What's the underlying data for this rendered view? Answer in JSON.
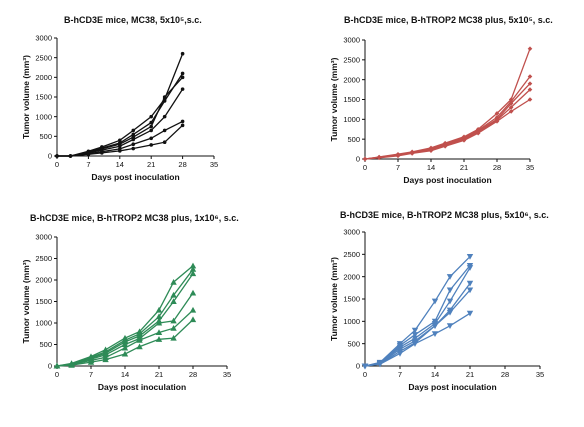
{
  "chart_data": [
    {
      "type": "line",
      "title": "B-hCD3E mice, MC38, 5x10⁵,s.c.",
      "xlabel": "Days post inoculation",
      "ylabel": "Tumor volume (mm³)",
      "xlim": [
        0,
        35
      ],
      "ylim": [
        0,
        3000
      ],
      "xticks": [
        0,
        7,
        14,
        21,
        28,
        35
      ],
      "yticks": [
        0,
        500,
        1000,
        1500,
        2000,
        2500,
        3000
      ],
      "marker": "circle",
      "color": "#111111",
      "series": [
        {
          "x": [
            0,
            3,
            7,
            10,
            14,
            17,
            21,
            24,
            28
          ],
          "y": [
            0,
            0,
            120,
            230,
            400,
            650,
            1000,
            1450,
            2600
          ]
        },
        {
          "x": [
            0,
            3,
            7,
            10,
            14,
            17,
            21,
            24,
            28
          ],
          "y": [
            0,
            0,
            100,
            200,
            330,
            550,
            850,
            1400,
            2100
          ]
        },
        {
          "x": [
            0,
            3,
            7,
            10,
            14,
            17,
            21,
            24,
            28
          ],
          "y": [
            0,
            0,
            90,
            180,
            300,
            480,
            750,
            1500,
            2000
          ]
        },
        {
          "x": [
            0,
            3,
            7,
            10,
            14,
            17,
            21,
            24,
            28
          ],
          "y": [
            0,
            0,
            80,
            150,
            250,
            420,
            650,
            1000,
            1700
          ]
        },
        {
          "x": [
            0,
            3,
            7,
            10,
            14,
            17,
            21,
            24,
            28
          ],
          "y": [
            0,
            0,
            60,
            110,
            180,
            300,
            450,
            650,
            880
          ]
        },
        {
          "x": [
            0,
            3,
            7,
            10,
            14,
            17,
            21,
            24,
            28
          ],
          "y": [
            0,
            0,
            40,
            80,
            130,
            190,
            280,
            350,
            780
          ]
        }
      ]
    },
    {
      "type": "line",
      "title": "B-hCD3E mice, B-hTROP2 MC38 plus, 5x10⁵, s.c.",
      "xlabel": "Days post inoculation",
      "ylabel": "Tumor volume (mm³)",
      "xlim": [
        0,
        35
      ],
      "ylim": [
        0,
        3000
      ],
      "xticks": [
        0,
        7,
        14,
        21,
        28,
        35
      ],
      "yticks": [
        0,
        500,
        1000,
        1500,
        2000,
        2500,
        3000
      ],
      "marker": "diamond",
      "color": "#c0504d",
      "series": [
        {
          "x": [
            0,
            3,
            7,
            10,
            14,
            17,
            21,
            24,
            28,
            31,
            35
          ],
          "y": [
            0,
            50,
            120,
            180,
            280,
            400,
            560,
            750,
            1150,
            1500,
            2780
          ]
        },
        {
          "x": [
            0,
            3,
            7,
            10,
            14,
            17,
            21,
            24,
            28,
            31,
            35
          ],
          "y": [
            0,
            45,
            110,
            170,
            260,
            380,
            540,
            720,
            1050,
            1450,
            2080
          ]
        },
        {
          "x": [
            0,
            3,
            7,
            10,
            14,
            17,
            21,
            24,
            28,
            31,
            35
          ],
          "y": [
            0,
            40,
            100,
            160,
            240,
            360,
            510,
            700,
            1000,
            1400,
            1900
          ]
        },
        {
          "x": [
            0,
            3,
            7,
            10,
            14,
            17,
            21,
            24,
            28,
            31,
            35
          ],
          "y": [
            0,
            35,
            90,
            150,
            230,
            340,
            490,
            680,
            980,
            1300,
            1750
          ]
        },
        {
          "x": [
            0,
            3,
            7,
            10,
            14,
            17,
            21,
            24,
            28,
            31,
            35
          ],
          "y": [
            0,
            30,
            80,
            140,
            210,
            320,
            470,
            650,
            950,
            1200,
            1500
          ]
        }
      ]
    },
    {
      "type": "line",
      "title": "B-hCD3E mice, B-hTROP2 MC38 plus, 1x10⁶, s.c.",
      "xlabel": "Days post inoculation",
      "ylabel": "Tumor volume (mm³)",
      "xlim": [
        0,
        35
      ],
      "ylim": [
        0,
        3000
      ],
      "xticks": [
        0,
        7,
        14,
        21,
        28,
        35
      ],
      "yticks": [
        0,
        500,
        1000,
        1500,
        2000,
        2500,
        3000
      ],
      "marker": "triangle-up",
      "color": "#2e8b57",
      "series": [
        {
          "x": [
            0,
            3,
            7,
            10,
            14,
            17,
            21,
            24,
            28
          ],
          "y": [
            0,
            60,
            220,
            380,
            650,
            800,
            1300,
            1950,
            2330
          ]
        },
        {
          "x": [
            0,
            3,
            7,
            10,
            14,
            17,
            21,
            24,
            28
          ],
          "y": [
            0,
            50,
            200,
            330,
            600,
            750,
            1150,
            1650,
            2250
          ]
        },
        {
          "x": [
            0,
            3,
            7,
            10,
            14,
            17,
            21,
            24,
            28
          ],
          "y": [
            0,
            45,
            180,
            300,
            560,
            700,
            1050,
            1500,
            2150
          ]
        },
        {
          "x": [
            0,
            3,
            7,
            10,
            14,
            17,
            21,
            24,
            28
          ],
          "y": [
            0,
            40,
            160,
            260,
            500,
            640,
            1000,
            1050,
            1700
          ]
        },
        {
          "x": [
            0,
            3,
            7,
            10,
            14,
            17,
            21,
            24,
            28
          ],
          "y": [
            0,
            30,
            130,
            200,
            420,
            600,
            780,
            880,
            1300
          ]
        },
        {
          "x": [
            0,
            3,
            7,
            10,
            14,
            17,
            21,
            24,
            28
          ],
          "y": [
            0,
            20,
            90,
            150,
            280,
            450,
            620,
            650,
            1080
          ]
        }
      ]
    },
    {
      "type": "line",
      "title": "B-hCD3E mice, B-hTROP2 MC38 plus, 5x10⁶, s.c.",
      "xlabel": "Days post inoculation",
      "ylabel": "Tumor volume (mm³)",
      "xlim": [
        0,
        35
      ],
      "ylim": [
        0,
        3000
      ],
      "xticks": [
        0,
        7,
        14,
        21,
        28,
        35
      ],
      "yticks": [
        0,
        500,
        1000,
        1500,
        2000,
        2500,
        3000
      ],
      "marker": "triangle-down",
      "color": "#4f81bd",
      "series": [
        {
          "x": [
            0,
            3,
            7,
            10,
            14,
            17,
            21
          ],
          "y": [
            0,
            80,
            500,
            800,
            1450,
            2000,
            2450
          ]
        },
        {
          "x": [
            0,
            3,
            7,
            10,
            14,
            17,
            21
          ],
          "y": [
            0,
            70,
            460,
            700,
            1000,
            1700,
            2250
          ]
        },
        {
          "x": [
            0,
            3,
            7,
            10,
            14,
            17,
            21
          ],
          "y": [
            0,
            60,
            420,
            620,
            950,
            1450,
            2200
          ]
        },
        {
          "x": [
            0,
            3,
            7,
            10,
            14,
            17,
            21
          ],
          "y": [
            0,
            50,
            380,
            560,
            900,
            1250,
            1850
          ]
        },
        {
          "x": [
            0,
            3,
            7,
            10,
            14,
            17,
            21
          ],
          "y": [
            0,
            45,
            330,
            520,
            900,
            1200,
            1700
          ]
        },
        {
          "x": [
            0,
            3,
            7,
            10,
            14,
            17,
            21
          ],
          "y": [
            0,
            40,
            280,
            500,
            720,
            900,
            1180
          ]
        }
      ]
    }
  ]
}
